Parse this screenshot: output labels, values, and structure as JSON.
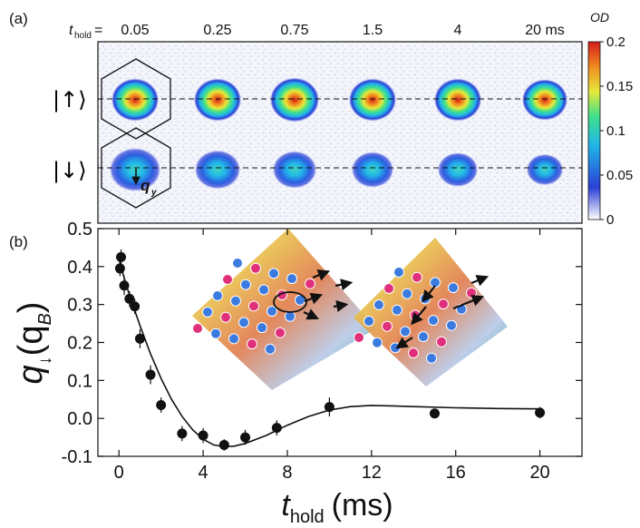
{
  "figure": {
    "panel_a_label": "(a)",
    "panel_b_label": "(b)"
  },
  "panel_a": {
    "thold_symbol": "t",
    "thold_subscript": "hold",
    "thold_equals": "=",
    "times": [
      "0.05",
      "0.25",
      "0.75",
      "1.5",
      "4",
      "20 ms"
    ],
    "spin_up_label": "|↑⟩",
    "spin_down_label": "|↓⟩",
    "q_label": "q",
    "q_subscript": "y",
    "colorbar": {
      "title": "OD",
      "ticks": [
        "0.2",
        "0.15",
        "0.1",
        "0.05",
        "0"
      ],
      "tick_values": [
        0.2,
        0.15,
        0.1,
        0.05,
        0
      ],
      "range": [
        0,
        0.2
      ],
      "colors": [
        "#ffffff",
        "#2b3fd6",
        "#22b6e8",
        "#3fe08a",
        "#e8e83a",
        "#f08a1e",
        "#d41c1c"
      ]
    }
  },
  "chart_data": {
    "type": "scatter",
    "xlabel_main": "t",
    "xlabel_sub": "hold",
    "xlabel_unit": "(ms)",
    "ylabel_main": "q",
    "ylabel_sub": "↓",
    "ylabel_unit": "(q",
    "ylabel_unit_sub": "B",
    "ylabel_close": ")",
    "xlim": [
      -1,
      22
    ],
    "ylim": [
      -0.1,
      0.5
    ],
    "xticks": [
      0,
      4,
      8,
      12,
      16,
      20
    ],
    "yticks": [
      -0.1,
      0.0,
      0.1,
      0.2,
      0.3,
      0.4,
      0.5
    ],
    "xtick_labels": [
      "0",
      "4",
      "8",
      "12",
      "16",
      "20"
    ],
    "ytick_labels": [
      "-0.1",
      "0.0",
      "0.1",
      "0.2",
      "0.3",
      "0.4",
      "0.5"
    ],
    "series": [
      {
        "name": "data",
        "x": [
          0.05,
          0.1,
          0.25,
          0.5,
          0.75,
          1.0,
          1.5,
          2.0,
          3.0,
          4.0,
          5.0,
          6.0,
          7.5,
          10.0,
          15.0,
          20.0
        ],
        "y": [
          0.395,
          0.425,
          0.35,
          0.315,
          0.295,
          0.21,
          0.115,
          0.035,
          -0.04,
          -0.045,
          -0.07,
          -0.05,
          -0.025,
          0.03,
          0.013,
          0.015
        ],
        "err": [
          0.02,
          0.02,
          0.025,
          0.02,
          0.02,
          0.025,
          0.025,
          0.02,
          0.02,
          0.02,
          0.015,
          0.02,
          0.02,
          0.025,
          0.012,
          0.015
        ]
      },
      {
        "name": "fit",
        "x": [
          0,
          0.25,
          0.5,
          1.0,
          1.5,
          2.0,
          2.5,
          3.0,
          3.5,
          4.0,
          4.5,
          5.0,
          5.5,
          6.0,
          7.0,
          8.0,
          9.0,
          10.0,
          11.0,
          12.0,
          13.0,
          14.0,
          16.0,
          18.0,
          20.0
        ],
        "y": [
          0.42,
          0.37,
          0.325,
          0.245,
          0.17,
          0.105,
          0.05,
          0.005,
          -0.03,
          -0.055,
          -0.07,
          -0.075,
          -0.073,
          -0.066,
          -0.045,
          -0.018,
          0.005,
          0.022,
          0.031,
          0.034,
          0.033,
          0.031,
          0.028,
          0.026,
          0.025
        ]
      }
    ]
  }
}
